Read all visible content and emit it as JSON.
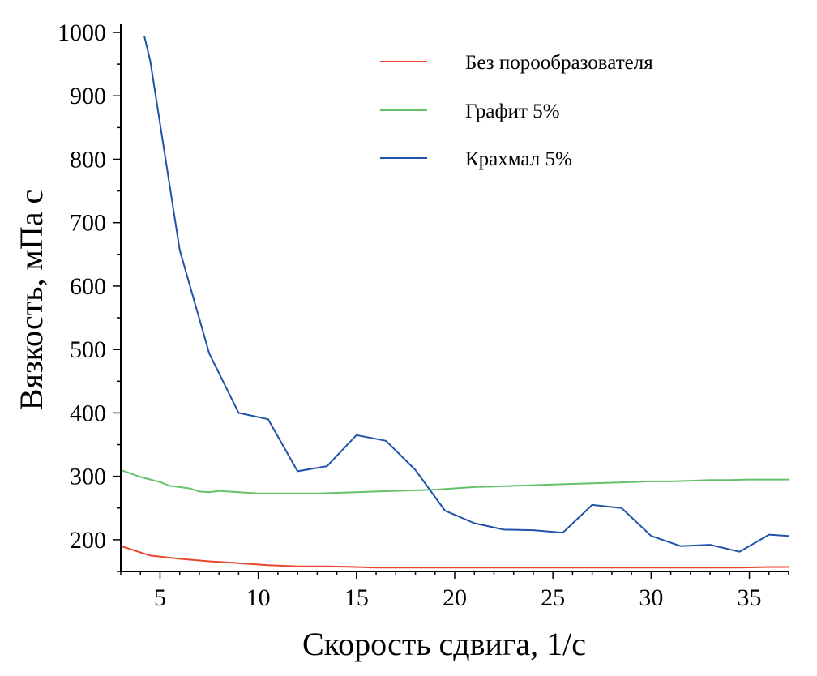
{
  "chart_data": {
    "type": "line",
    "title": "",
    "xlabel": "Скорость сдвига, 1/с",
    "ylabel": "Вязкость, мПа с",
    "xlim": [
      3,
      37
    ],
    "ylim": [
      150,
      1000
    ],
    "xticks": [
      5,
      10,
      15,
      20,
      25,
      30,
      35
    ],
    "yticks": [
      200,
      300,
      400,
      500,
      600,
      700,
      800,
      900,
      1000
    ],
    "xtick_labels": [
      "5",
      "10",
      "15",
      "20",
      "25",
      "30",
      "35"
    ],
    "ytick_labels": [
      "200",
      "300",
      "400",
      "500",
      "600",
      "700",
      "800",
      "900",
      "1000"
    ],
    "grid": false,
    "legend_position": "top-right",
    "series": [
      {
        "name": "Без порообразователя",
        "color": "#e8472e",
        "x": [
          3,
          4.5,
          6,
          7.5,
          9,
          10.5,
          12,
          13.5,
          15,
          16,
          17,
          18,
          19.5,
          21,
          22.5,
          24,
          25.5,
          27,
          28.5,
          30,
          31.5,
          33,
          34.5,
          36,
          37
        ],
        "y": [
          190,
          175,
          170,
          166,
          163,
          160,
          158,
          158,
          157,
          156,
          156,
          156,
          156,
          156,
          156,
          156,
          156,
          156,
          156,
          156,
          156,
          156,
          156,
          157,
          157
        ]
      },
      {
        "name": "Графит 5%",
        "color": "#66c26a",
        "x": [
          3,
          4,
          5,
          5.5,
          6.5,
          7,
          7.5,
          8,
          9,
          10,
          11,
          12,
          13,
          14,
          15,
          16,
          17,
          18,
          19,
          20,
          21,
          22,
          23,
          24,
          25,
          26,
          27,
          28,
          29,
          30,
          31,
          32,
          33,
          34,
          35,
          36,
          37
        ],
        "y": [
          310,
          299,
          291,
          285,
          281,
          276,
          275,
          277,
          275,
          273,
          273,
          273,
          273,
          274,
          275,
          276,
          277,
          278,
          279,
          281,
          283,
          284,
          285,
          286,
          287,
          288,
          289,
          290,
          291,
          292,
          292,
          293,
          294,
          294,
          295,
          295,
          295
        ]
      },
      {
        "name": "Крахмал 5%",
        "color": "#1f52a8",
        "x": [
          4.2,
          4.5,
          6,
          7.5,
          9,
          10.5,
          12,
          13.5,
          15,
          16.5,
          18,
          19.5,
          21,
          22.5,
          24,
          25.5,
          27,
          28.5,
          30,
          31.5,
          33,
          34.5,
          36,
          37
        ],
        "y": [
          994,
          955,
          657,
          494,
          400,
          390,
          308,
          316,
          365,
          356,
          310,
          246,
          226,
          216,
          215,
          211,
          255,
          250,
          206,
          190,
          192,
          181,
          208,
          206
        ]
      }
    ]
  }
}
